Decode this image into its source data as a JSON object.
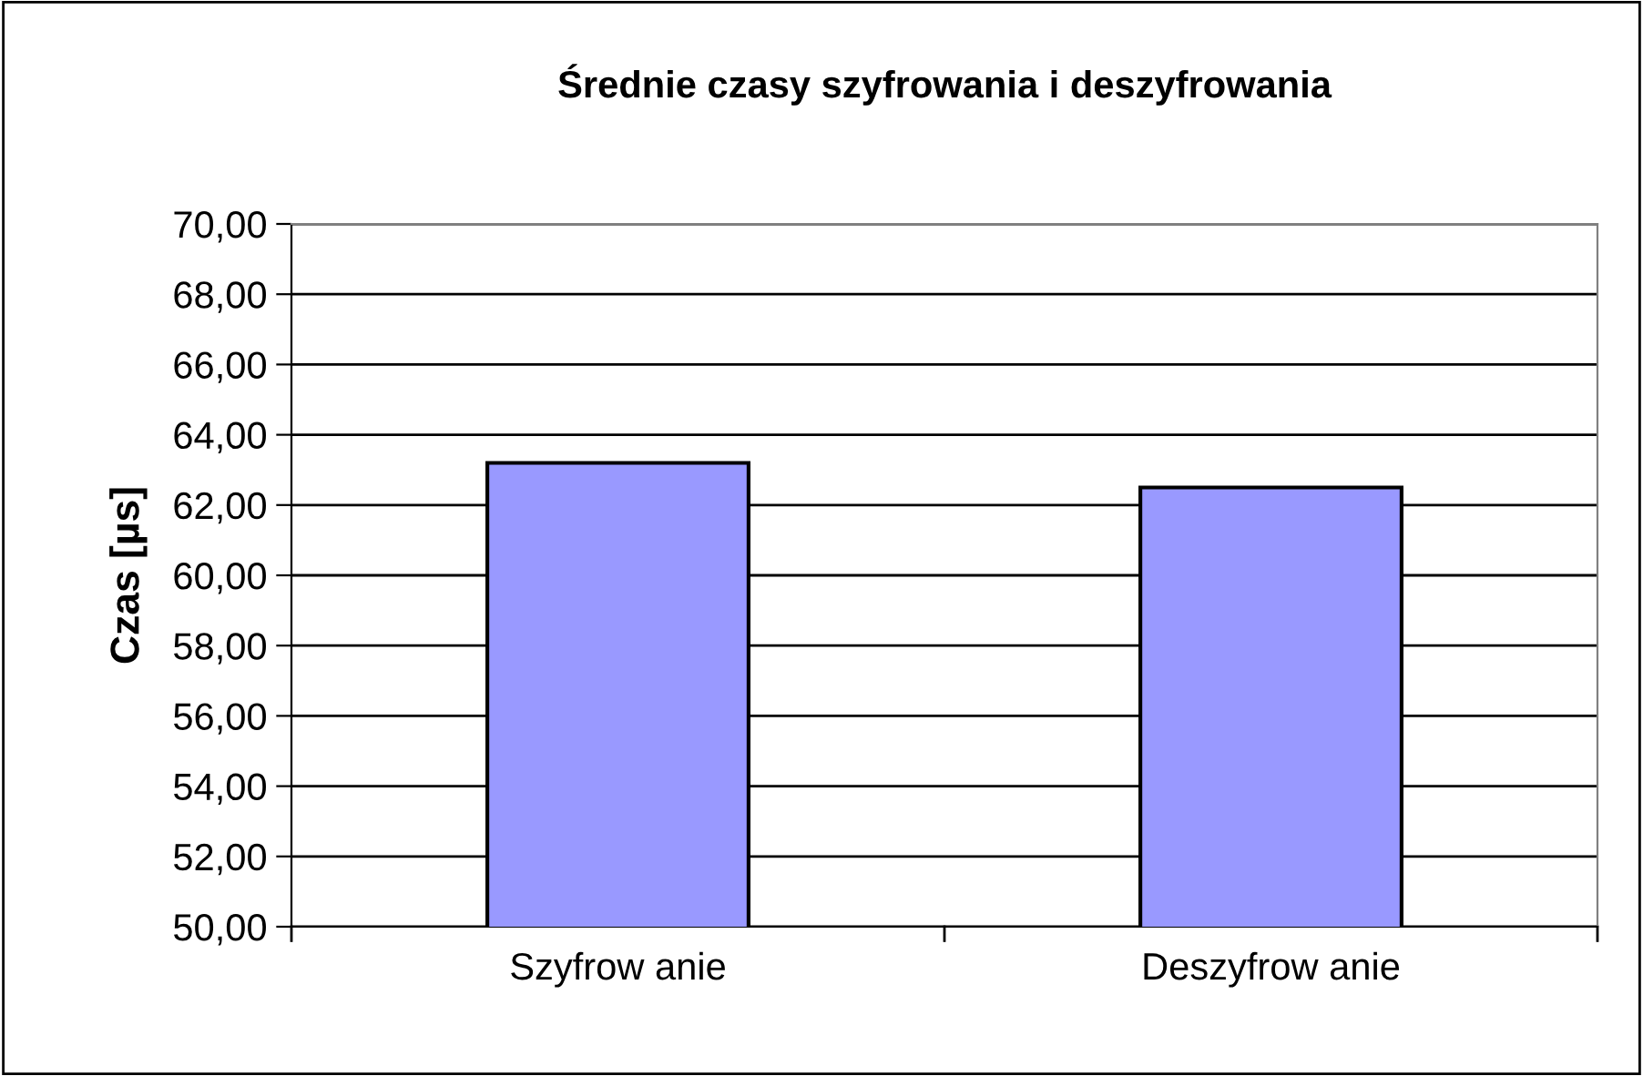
{
  "chart_data": {
    "type": "bar",
    "title": "Średnie czasy szyfrowania i deszyfrowania",
    "ylabel": "Czas [µs]",
    "categories": [
      "Szyfrow anie",
      "Deszyfrow anie"
    ],
    "values": [
      63.2,
      62.5
    ],
    "color": "#9999ff",
    "ylim": [
      50,
      70
    ],
    "yticks": [
      {
        "value": 50,
        "label": "50,00"
      },
      {
        "value": 52,
        "label": "52,00"
      },
      {
        "value": 54,
        "label": "54,00"
      },
      {
        "value": 56,
        "label": "56,00"
      },
      {
        "value": 58,
        "label": "58,00"
      },
      {
        "value": 60,
        "label": "60,00"
      },
      {
        "value": 62,
        "label": "62,00"
      },
      {
        "value": 64,
        "label": "64,00"
      },
      {
        "value": 66,
        "label": "66,00"
      },
      {
        "value": 68,
        "label": "68,00"
      },
      {
        "value": 70,
        "label": "70,00"
      }
    ],
    "grid": "y"
  }
}
